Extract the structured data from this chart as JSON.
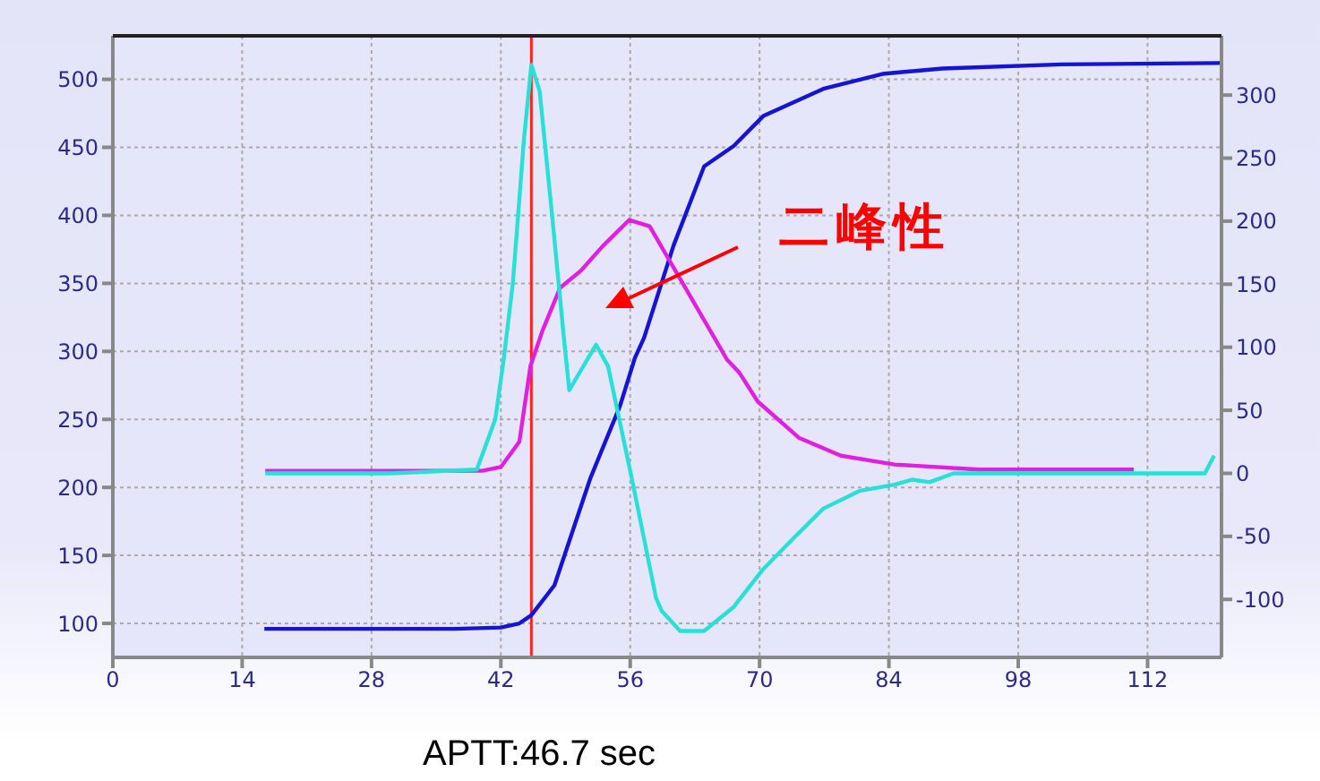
{
  "chart_data": {
    "type": "line",
    "annotations": [
      "二峰性",
      "APTT:46.7 sec"
    ],
    "xlim": [
      0,
      120
    ],
    "xticks": [
      0,
      14,
      28,
      42,
      56,
      70,
      84,
      98,
      112
    ],
    "ylim": [
      75,
      532
    ],
    "yticks": [
      100,
      150,
      200,
      250,
      300,
      350,
      400,
      450,
      500
    ],
    "y2lim": [
      -146,
      347
    ],
    "y2ticks": [
      -100,
      -50,
      0,
      50,
      100,
      150,
      200,
      250,
      300
    ],
    "grid": true,
    "marker": "none",
    "line_style": "solid",
    "ref_lines": [
      {
        "axis": "x",
        "value": 45.3,
        "color": "#ff2020"
      }
    ],
    "series": [
      {
        "color": "#1414d2",
        "x": [
          16.4,
          30,
          37,
          42,
          44,
          45.3,
          47.8,
          51.7,
          54.9,
          56.5,
          57.5,
          60.7,
          64,
          67.2,
          70.4,
          76.9,
          83.3,
          89.8,
          102.7,
          119.9
        ],
        "values": [
          96,
          96,
          96,
          97,
          100,
          106,
          128,
          207,
          260,
          295,
          310,
          378,
          436,
          451,
          473,
          493,
          504,
          508,
          511,
          512
        ]
      },
      {
        "color": "#e020e0",
        "axis": "y2",
        "x": [
          16.5,
          30,
          40,
          42,
          44,
          45.2,
          46.5,
          48.4,
          50.7,
          53,
          55.9,
          58.1,
          66.5,
          67.8,
          69.8,
          74.3,
          78.8,
          84.6,
          93.7,
          110.5
        ],
        "values": [
          2,
          2,
          2,
          5,
          25,
          85,
          113,
          147,
          161,
          180,
          201,
          196,
          90,
          80,
          57,
          28,
          14,
          7,
          3,
          3
        ]
      },
      {
        "color": "#28e0d8",
        "axis": "y2",
        "x": [
          16.5,
          30,
          39.4,
          41.4,
          42.3,
          43.3,
          44.5,
          45.3,
          46.2,
          47.5,
          48.8,
          49.4,
          52.3,
          53.6,
          56.2,
          57.5,
          58.8,
          59.4,
          61.4,
          64,
          67.2,
          70.4,
          73.6,
          76.9,
          80.8,
          84.6,
          86.5,
          88.4,
          91,
          118.2,
          119.2
        ],
        "values": [
          0,
          0,
          3,
          43,
          90,
          151,
          265,
          324,
          303,
          208,
          109,
          66,
          102,
          85,
          -5,
          -52,
          -99,
          -109,
          -125,
          -125,
          -106,
          -76,
          -52,
          -28,
          -14,
          -9,
          -5,
          -7,
          0,
          0,
          14
        ]
      }
    ]
  }
}
